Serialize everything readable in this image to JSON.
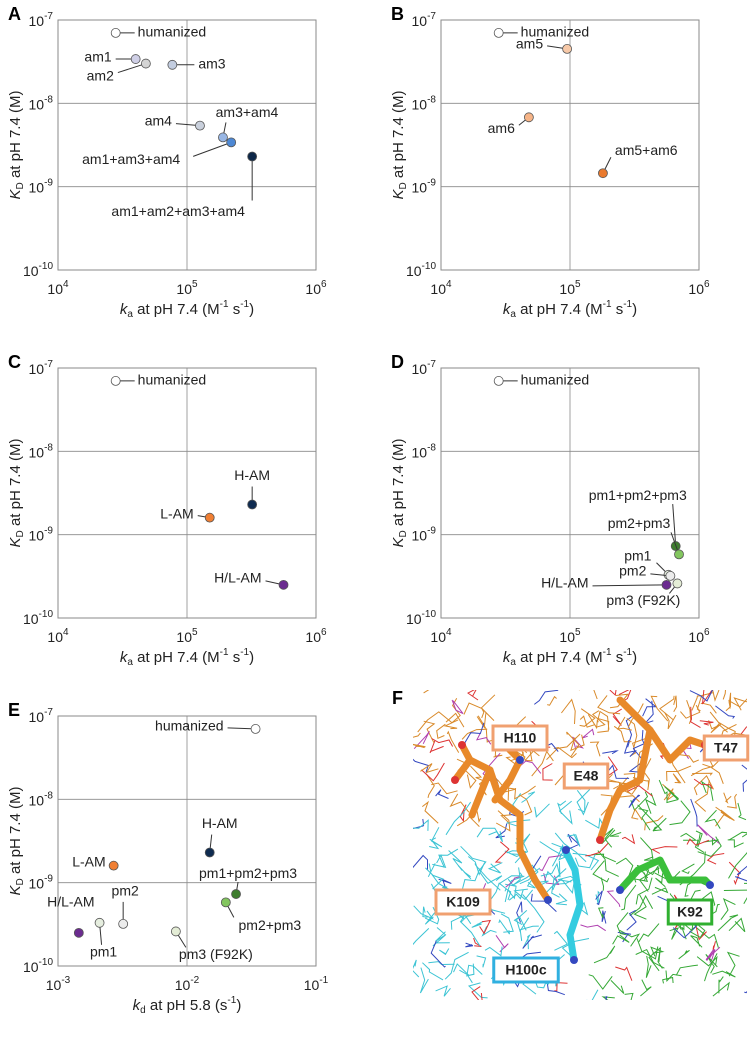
{
  "chart_data": [
    {
      "type": "scatter",
      "panel": "A",
      "xlabel": [
        {
          "text": "k",
          "style": "italic"
        },
        {
          "text": "a",
          "style": "sub"
        },
        {
          "text": " at pH 7.4 (M",
          "style": "normal"
        },
        {
          "text": "-1",
          "style": "sup"
        },
        {
          "text": " s",
          "style": "normal"
        },
        {
          "text": "-1",
          "style": "sup"
        },
        {
          "text": ")",
          "style": "normal"
        }
      ],
      "ylabel": [
        {
          "text": "K",
          "style": "italic"
        },
        {
          "text": "D",
          "style": "sub"
        },
        {
          "text": " at pH 7.4 (M)",
          "style": "normal"
        }
      ],
      "xscale": "log",
      "yscale": "log",
      "grid": true,
      "xlim": [
        10000.0,
        1000000.0
      ],
      "ylim": [
        1e-10,
        1e-07
      ],
      "xticks": [
        {
          "value": 10000.0,
          "label": "10",
          "exponent": "4"
        },
        {
          "value": 100000.0,
          "label": "10",
          "exponent": "5"
        },
        {
          "value": 1000000.0,
          "label": "10",
          "exponent": "6"
        }
      ],
      "yticks": [
        {
          "value": 1e-10,
          "label": "10",
          "exponent": "-10"
        },
        {
          "value": 1e-09,
          "label": "10",
          "exponent": "-9"
        },
        {
          "value": 1e-08,
          "label": "10",
          "exponent": "-8"
        },
        {
          "value": 1e-07,
          "label": "10",
          "exponent": "-7"
        }
      ],
      "series": [
        {
          "name": "humanized",
          "color": "#ffffff",
          "x": [
            28000.0
          ],
          "values": [
            7e-08
          ]
        },
        {
          "name": "am1",
          "color": "#cfcfe6",
          "x": [
            40000.0
          ],
          "values": [
            3.4e-08
          ]
        },
        {
          "name": "am2",
          "color": "#d4d4d4",
          "x": [
            48000.0
          ],
          "values": [
            3e-08
          ]
        },
        {
          "name": "am3",
          "color": "#c3cde0",
          "x": [
            77000.0
          ],
          "values": [
            2.9e-08
          ]
        },
        {
          "name": "am4",
          "color": "#c9d0dc",
          "x": [
            126000.0
          ],
          "values": [
            5.4e-09
          ]
        },
        {
          "name": "am3+am4",
          "color": "#98b6e4",
          "x": [
            190000.0
          ],
          "values": [
            3.9e-09
          ]
        },
        {
          "name": "am1+am3+am4",
          "color": "#4d88d4",
          "x": [
            220000.0
          ],
          "values": [
            3.4e-09
          ]
        },
        {
          "name": "am1+am2+am3+am4",
          "color": "#0d2748",
          "x": [
            320000.0
          ],
          "values": [
            2.3e-09
          ]
        }
      ]
    },
    {
      "type": "scatter",
      "panel": "B",
      "xlabel": [
        {
          "text": "k",
          "style": "italic"
        },
        {
          "text": "a",
          "style": "sub"
        },
        {
          "text": " at pH 7.4 (M",
          "style": "normal"
        },
        {
          "text": "-1",
          "style": "sup"
        },
        {
          "text": " s",
          "style": "normal"
        },
        {
          "text": "-1",
          "style": "sup"
        },
        {
          "text": ")",
          "style": "normal"
        }
      ],
      "ylabel": [
        {
          "text": "K",
          "style": "italic"
        },
        {
          "text": "D",
          "style": "sub"
        },
        {
          "text": " at pH 7.4 (M)",
          "style": "normal"
        }
      ],
      "xscale": "log",
      "yscale": "log",
      "grid": true,
      "xlim": [
        10000.0,
        1000000.0
      ],
      "ylim": [
        1e-10,
        1e-07
      ],
      "xticks": [
        {
          "value": 10000.0,
          "label": "10",
          "exponent": "4"
        },
        {
          "value": 100000.0,
          "label": "10",
          "exponent": "5"
        },
        {
          "value": 1000000.0,
          "label": "10",
          "exponent": "6"
        }
      ],
      "yticks": [
        {
          "value": 1e-10,
          "label": "10",
          "exponent": "-10"
        },
        {
          "value": 1e-09,
          "label": "10",
          "exponent": "-9"
        },
        {
          "value": 1e-08,
          "label": "10",
          "exponent": "-8"
        },
        {
          "value": 1e-07,
          "label": "10",
          "exponent": "-7"
        }
      ],
      "series": [
        {
          "name": "humanized",
          "color": "#ffffff",
          "x": [
            28000.0
          ],
          "values": [
            7e-08
          ]
        },
        {
          "name": "am5",
          "color": "#f7c9a8",
          "x": [
            95000.0
          ],
          "values": [
            4.5e-08
          ]
        },
        {
          "name": "am6",
          "color": "#f6b487",
          "x": [
            48000.0
          ],
          "values": [
            6.8e-09
          ]
        },
        {
          "name": "am5+am6",
          "color": "#ea7a2e",
          "x": [
            180000.0
          ],
          "values": [
            1.45e-09
          ]
        }
      ]
    },
    {
      "type": "scatter",
      "panel": "C",
      "xlabel": [
        {
          "text": "k",
          "style": "italic"
        },
        {
          "text": "a",
          "style": "sub"
        },
        {
          "text": " at pH 7.4 (M",
          "style": "normal"
        },
        {
          "text": "-1",
          "style": "sup"
        },
        {
          "text": " s",
          "style": "normal"
        },
        {
          "text": "-1",
          "style": "sup"
        },
        {
          "text": ")",
          "style": "normal"
        }
      ],
      "ylabel": [
        {
          "text": "K",
          "style": "italic"
        },
        {
          "text": "D",
          "style": "sub"
        },
        {
          "text": " at pH 7.4 (M)",
          "style": "normal"
        }
      ],
      "xscale": "log",
      "yscale": "log",
      "grid": true,
      "xlim": [
        10000.0,
        1000000.0
      ],
      "ylim": [
        1e-10,
        1e-07
      ],
      "xticks": [
        {
          "value": 10000.0,
          "label": "10",
          "exponent": "4"
        },
        {
          "value": 100000.0,
          "label": "10",
          "exponent": "5"
        },
        {
          "value": 1000000.0,
          "label": "10",
          "exponent": "6"
        }
      ],
      "yticks": [
        {
          "value": 1e-10,
          "label": "10",
          "exponent": "-10"
        },
        {
          "value": 1e-09,
          "label": "10",
          "exponent": "-9"
        },
        {
          "value": 1e-08,
          "label": "10",
          "exponent": "-8"
        },
        {
          "value": 1e-07,
          "label": "10",
          "exponent": "-7"
        }
      ],
      "series": [
        {
          "name": "humanized",
          "color": "#ffffff",
          "x": [
            28000.0
          ],
          "values": [
            7e-08
          ]
        },
        {
          "name": "H-AM",
          "color": "#0f2b50",
          "x": [
            320000.0
          ],
          "values": [
            2.3e-09
          ]
        },
        {
          "name": "L-AM",
          "color": "#f07f33",
          "x": [
            150000.0
          ],
          "values": [
            1.6e-09
          ]
        },
        {
          "name": "H/L-AM",
          "color": "#6b2c8f",
          "x": [
            560000.0
          ],
          "values": [
            2.5e-10
          ]
        }
      ]
    },
    {
      "type": "scatter",
      "panel": "D",
      "xlabel": [
        {
          "text": "k",
          "style": "italic"
        },
        {
          "text": "a",
          "style": "sub"
        },
        {
          "text": " at pH 7.4 (M",
          "style": "normal"
        },
        {
          "text": "-1",
          "style": "sup"
        },
        {
          "text": " s",
          "style": "normal"
        },
        {
          "text": "-1",
          "style": "sup"
        },
        {
          "text": ")",
          "style": "normal"
        }
      ],
      "ylabel": [
        {
          "text": "K",
          "style": "italic"
        },
        {
          "text": "D",
          "style": "sub"
        },
        {
          "text": " at pH 7.4 (M)",
          "style": "normal"
        }
      ],
      "xscale": "log",
      "yscale": "log",
      "grid": true,
      "xlim": [
        10000.0,
        1000000.0
      ],
      "ylim": [
        1e-10,
        1e-07
      ],
      "xticks": [
        {
          "value": 10000.0,
          "label": "10",
          "exponent": "4"
        },
        {
          "value": 100000.0,
          "label": "10",
          "exponent": "5"
        },
        {
          "value": 1000000.0,
          "label": "10",
          "exponent": "6"
        }
      ],
      "yticks": [
        {
          "value": 1e-10,
          "label": "10",
          "exponent": "-10"
        },
        {
          "value": 1e-09,
          "label": "10",
          "exponent": "-9"
        },
        {
          "value": 1e-08,
          "label": "10",
          "exponent": "-8"
        },
        {
          "value": 1e-07,
          "label": "10",
          "exponent": "-7"
        }
      ],
      "series": [
        {
          "name": "humanized",
          "color": "#ffffff",
          "x": [
            28000.0
          ],
          "values": [
            7e-08
          ]
        },
        {
          "name": "pm1+pm2+pm3",
          "color": "#3f7d2f",
          "x": [
            660000.0
          ],
          "values": [
            7.3e-10
          ]
        },
        {
          "name": "pm2+pm3",
          "color": "#83c65f",
          "x": [
            700000.0
          ],
          "values": [
            5.8e-10
          ]
        },
        {
          "name": "pm1",
          "color": "#e6eedf",
          "x": [
            580000.0
          ],
          "values": [
            3.3e-10
          ]
        },
        {
          "name": "pm2",
          "color": "#ececec",
          "x": [
            600000.0
          ],
          "values": [
            3.2e-10
          ]
        },
        {
          "name": "H/L-AM",
          "color": "#6b2c8f",
          "x": [
            560000.0
          ],
          "values": [
            2.5e-10
          ]
        },
        {
          "name": "pm3 (F92K)",
          "color": "#e4edd6",
          "x": [
            680000.0
          ],
          "values": [
            2.6e-10
          ]
        }
      ]
    },
    {
      "type": "scatter",
      "panel": "E",
      "xlabel": [
        {
          "text": "k",
          "style": "italic"
        },
        {
          "text": "d",
          "style": "sub"
        },
        {
          "text": " at pH 5.8 (s",
          "style": "normal"
        },
        {
          "text": "-1",
          "style": "sup"
        },
        {
          "text": ")",
          "style": "normal"
        }
      ],
      "ylabel": [
        {
          "text": "K",
          "style": "italic"
        },
        {
          "text": "D",
          "style": "sub"
        },
        {
          "text": " at pH 7.4 (M)",
          "style": "normal"
        }
      ],
      "xscale": "log",
      "yscale": "log",
      "grid": true,
      "xlim": [
        0.001,
        0.1
      ],
      "ylim": [
        1e-10,
        1e-07
      ],
      "xticks": [
        {
          "value": 0.001,
          "label": "10",
          "exponent": "-3"
        },
        {
          "value": 0.01,
          "label": "10",
          "exponent": "-2"
        },
        {
          "value": 0.1,
          "label": "10",
          "exponent": "-1"
        }
      ],
      "yticks": [
        {
          "value": 1e-10,
          "label": "10",
          "exponent": "-10"
        },
        {
          "value": 1e-09,
          "label": "10",
          "exponent": "-9"
        },
        {
          "value": 1e-08,
          "label": "10",
          "exponent": "-8"
        },
        {
          "value": 1e-07,
          "label": "10",
          "exponent": "-7"
        }
      ],
      "series": [
        {
          "name": "humanized",
          "color": "#ffffff",
          "x": [
            0.034
          ],
          "values": [
            7e-08
          ]
        },
        {
          "name": "L-AM",
          "color": "#f07f33",
          "x": [
            0.0027
          ],
          "values": [
            1.6e-09
          ]
        },
        {
          "name": "H-AM",
          "color": "#0f2b50",
          "x": [
            0.015
          ],
          "values": [
            2.3e-09
          ]
        },
        {
          "name": "pm1+pm2+pm3",
          "color": "#3f7d2f",
          "x": [
            0.024
          ],
          "values": [
            7.3e-10
          ]
        },
        {
          "name": "pm2+pm3",
          "color": "#83c65f",
          "x": [
            0.02
          ],
          "values": [
            5.8e-10
          ]
        },
        {
          "name": "pm3 (F92K)",
          "color": "#e4edd6",
          "x": [
            0.0082
          ],
          "values": [
            2.6e-10
          ]
        },
        {
          "name": "pm2",
          "color": "#ececec",
          "x": [
            0.0032
          ],
          "values": [
            3.2e-10
          ]
        },
        {
          "name": "pm1",
          "color": "#e6eedf",
          "x": [
            0.0021
          ],
          "values": [
            3.3e-10
          ]
        },
        {
          "name": "H/L-AM",
          "color": "#6b2c8f",
          "x": [
            0.00145
          ],
          "values": [
            2.5e-10
          ]
        }
      ]
    }
  ],
  "panel_f": {
    "letter": "F",
    "labels": [
      "H110",
      "E48",
      "T47",
      "K109",
      "K92",
      "H100c"
    ]
  }
}
